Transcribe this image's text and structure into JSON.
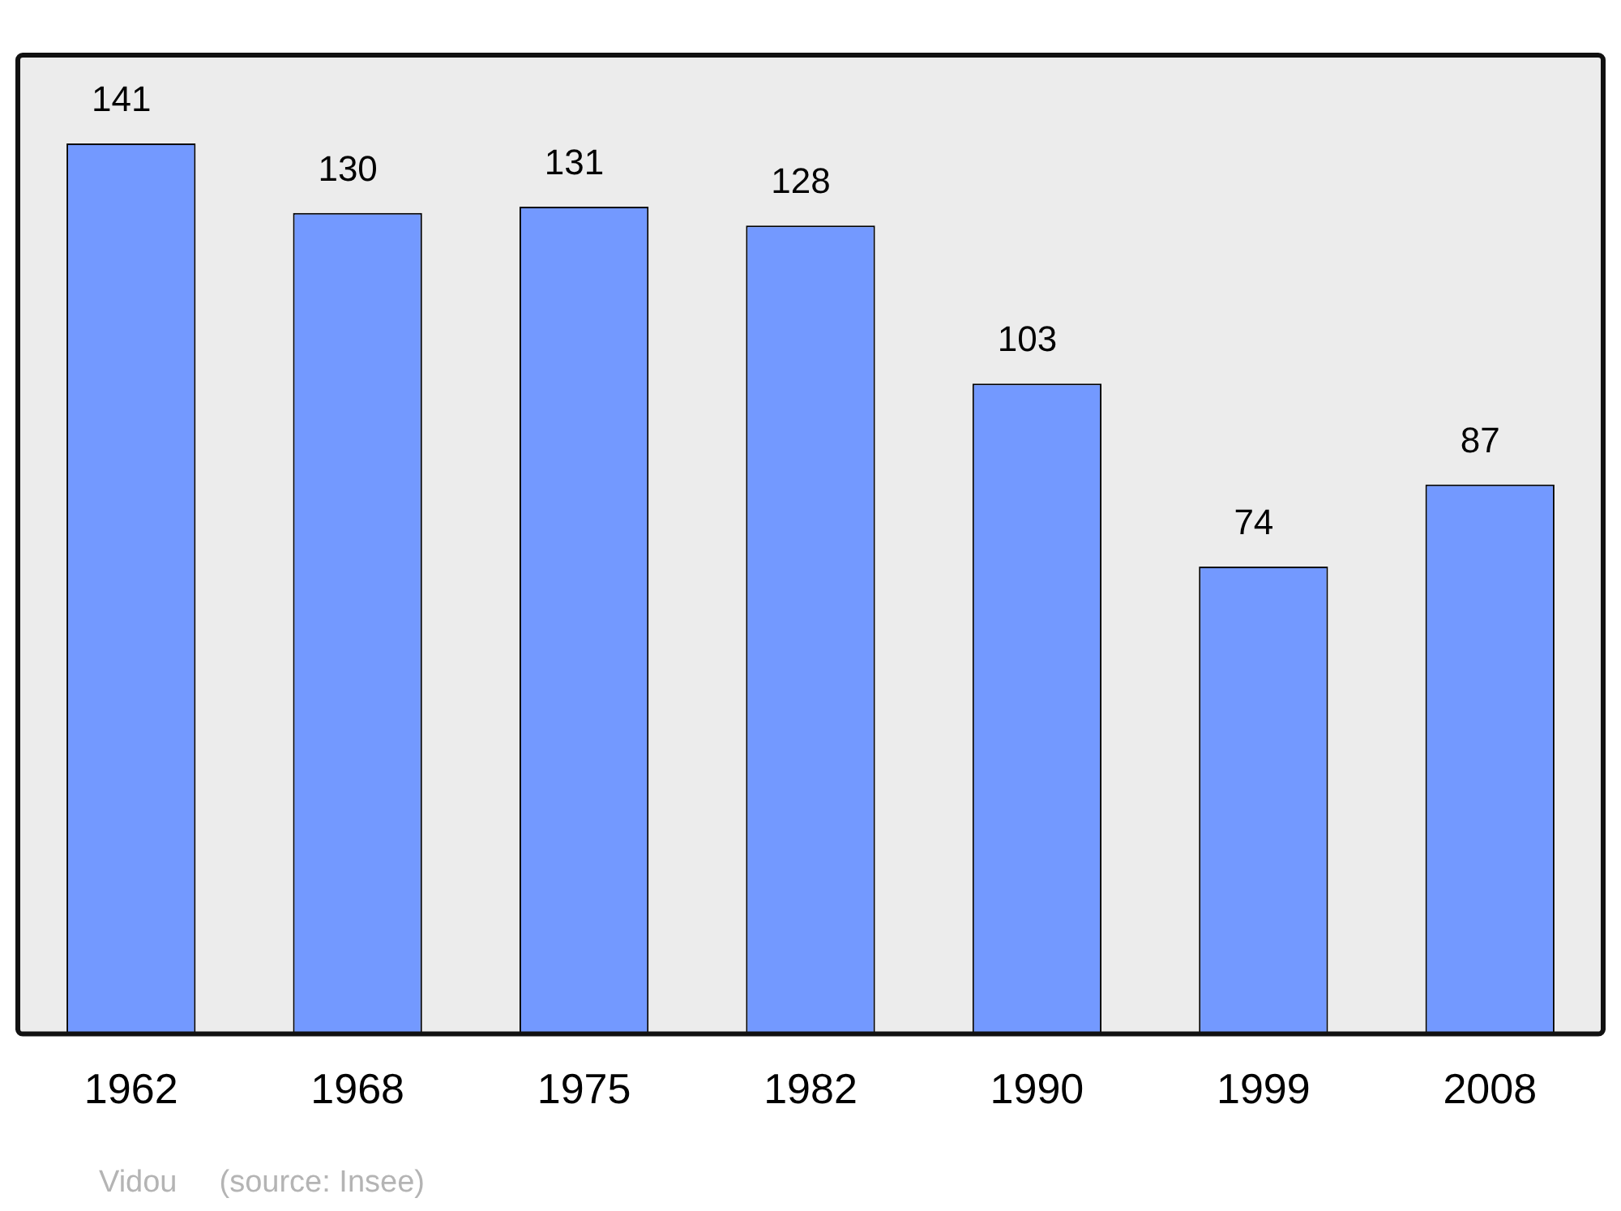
{
  "chart_data": {
    "type": "bar",
    "categories": [
      "1962",
      "1968",
      "1975",
      "1982",
      "1990",
      "1999",
      "2008"
    ],
    "values": [
      141,
      130,
      131,
      128,
      103,
      74,
      87
    ],
    "color": "#7399ff",
    "ylim": [
      0,
      155
    ],
    "tick_labels": "x",
    "data_labels": true,
    "grid": false,
    "legend": false,
    "annotations": [
      "Vidou",
      "(source: Insee)"
    ]
  }
}
